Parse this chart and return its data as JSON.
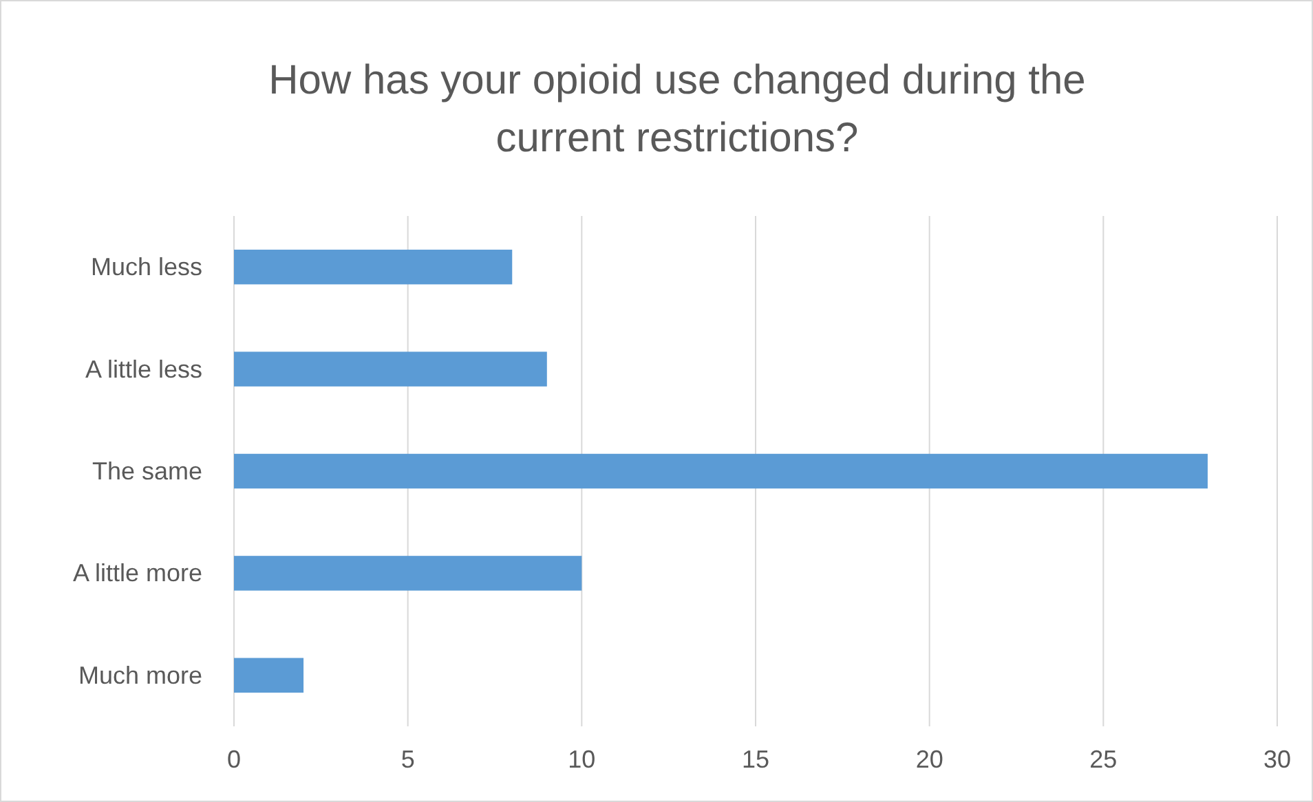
{
  "chart_data": {
    "type": "bar",
    "orientation": "horizontal",
    "title": "How has your opioid use changed during the current restrictions?",
    "categories": [
      "Much less",
      "A little less",
      "The same",
      "A little more",
      "Much more"
    ],
    "values": [
      8,
      9,
      28,
      10,
      2
    ],
    "color": "#5b9bd5",
    "xlim": [
      0,
      30
    ],
    "xticks": [
      0,
      5,
      10,
      15,
      20,
      25,
      30
    ],
    "grid": "x"
  }
}
